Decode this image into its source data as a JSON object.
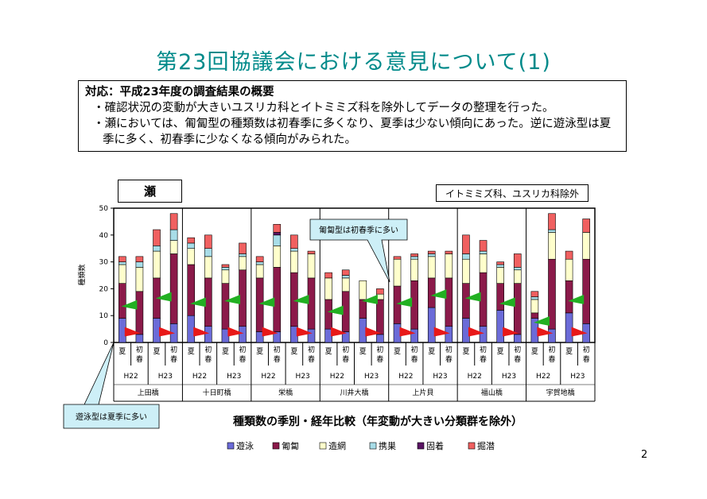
{
  "page": {
    "title": "第23回協議会における意見について(1)",
    "page_number": "2"
  },
  "summary": {
    "heading": "対応：平成23年度の調査結果の概要",
    "bullet1": "・確認状況の変動が大きいユスリカ科とイトミミズ科を除外してデータの整理を行った。",
    "bullet2": "・瀬においては、匍匐型の種類数は初春季に多くなり、夏季は少ない傾向にあった。逆に遊泳型は夏季に多く、初春季に少なくなる傾向がみられた。"
  },
  "chart_labels": {
    "habitat": "瀬",
    "exclusion_note": "イトミミズ科、ユスリカ科除外",
    "callout_crawl": "匍匐型は初春季に多い",
    "callout_swim": "遊泳型は夏季に多い",
    "caption": "種類数の季別・経年比較（年変動が大きい分類群を除外）"
  },
  "chart_data": {
    "type": "bar",
    "stacked": true,
    "ylabel": "種類数",
    "ylim": [
      0,
      50
    ],
    "yticks": [
      0,
      10,
      20,
      30,
      40,
      50
    ],
    "grid": false,
    "legend_position": "bottom",
    "series": [
      {
        "name": "遊泳",
        "color": "#6b6bd8"
      },
      {
        "name": "匍匐",
        "color": "#8b1a4a"
      },
      {
        "name": "造網",
        "color": "#ffffcc"
      },
      {
        "name": "携巣",
        "color": "#a8dde8"
      },
      {
        "name": "固着",
        "color": "#5a1464"
      },
      {
        "name": "掘潜",
        "color": "#f06060"
      }
    ],
    "season_labels": [
      "夏",
      "初春"
    ],
    "stations": [
      {
        "name": "上田橋",
        "years": [
          {
            "year": "H22",
            "bars": [
              [
                9,
                13,
                7,
                1,
                0,
                2
              ],
              [
                3,
                16,
                9,
                2,
                0,
                2
              ]
            ]
          },
          {
            "year": "H23",
            "bars": [
              [
                9,
                15,
                10,
                2,
                0,
                6
              ],
              [
                7,
                26,
                5,
                4,
                0,
                6
              ]
            ]
          }
        ]
      },
      {
        "name": "十日町橋",
        "years": [
          {
            "year": "H22",
            "bars": [
              [
                10,
                19,
                6,
                2,
                0,
                2
              ],
              [
                6,
                18,
                8,
                3,
                0,
                5
              ]
            ]
          },
          {
            "year": "H23",
            "bars": [
              [
                5,
                17,
                5,
                1,
                0,
                1
              ],
              [
                6,
                21,
                5,
                1,
                0,
                4
              ]
            ]
          }
        ]
      },
      {
        "name": "栄橋",
        "years": [
          {
            "year": "H22",
            "bars": [
              [
                4,
                20,
                5,
                1,
                0,
                2
              ],
              [
                4,
                24,
                8,
                4,
                1,
                3
              ]
            ]
          },
          {
            "year": "H23",
            "bars": [
              [
                6,
                20,
                8,
                1,
                0,
                5
              ],
              [
                5,
                19,
                9,
                0,
                0,
                1
              ]
            ]
          }
        ]
      },
      {
        "name": "川井大橋",
        "years": [
          {
            "year": "H22",
            "bars": [
              [
                5,
                11,
                8,
                0,
                0,
                2
              ],
              [
                4,
                15,
                5,
                1,
                0,
                2
              ]
            ]
          },
          {
            "year": "H23",
            "bars": [
              [
                9,
                7,
                7,
                0,
                0,
                0
              ],
              [
                3,
                13,
                2,
                0,
                0,
                2
              ]
            ]
          }
        ]
      },
      {
        "name": "上片貝",
        "years": [
          {
            "year": "H22",
            "bars": [
              [
                7,
                14,
                10,
                0,
                0,
                1
              ],
              [
                5,
                18,
                8,
                1,
                0,
                1
              ]
            ]
          },
          {
            "year": "H23",
            "bars": [
              [
                13,
                11,
                8,
                1,
                0,
                1
              ],
              [
                6,
                18,
                9,
                0,
                0,
                1
              ]
            ]
          }
        ]
      },
      {
        "name": "福山橋",
        "years": [
          {
            "year": "H22",
            "bars": [
              [
                9,
                13,
                9,
                2,
                0,
                7
              ],
              [
                6,
                20,
                7,
                1,
                0,
                4
              ]
            ]
          },
          {
            "year": "H23",
            "bars": [
              [
                12,
                10,
                6,
                1,
                0,
                1
              ],
              [
                3,
                19,
                5,
                1,
                0,
                5
              ]
            ]
          }
        ]
      },
      {
        "name": "宇賀地橋",
        "years": [
          {
            "year": "H22",
            "bars": [
              [
                9,
                2,
                5,
                1,
                0,
                2
              ],
              [
                5,
                26,
                10,
                1,
                0,
                6
              ]
            ]
          },
          {
            "year": "H23",
            "bars": [
              [
                11,
                12,
                8,
                0,
                0,
                3
              ],
              [
                7,
                24,
                10,
                0,
                0,
                5
              ]
            ]
          }
        ]
      }
    ],
    "markers": {
      "swim_arrow_color": "#e81818",
      "crawl_arrow_color": "#22b022",
      "swim_arrow_value": 4,
      "crawl_arrow_values": [
        14,
        17,
        15,
        16,
        15,
        16,
        12,
        16,
        15,
        18,
        17,
        15,
        8,
        16
      ]
    }
  }
}
